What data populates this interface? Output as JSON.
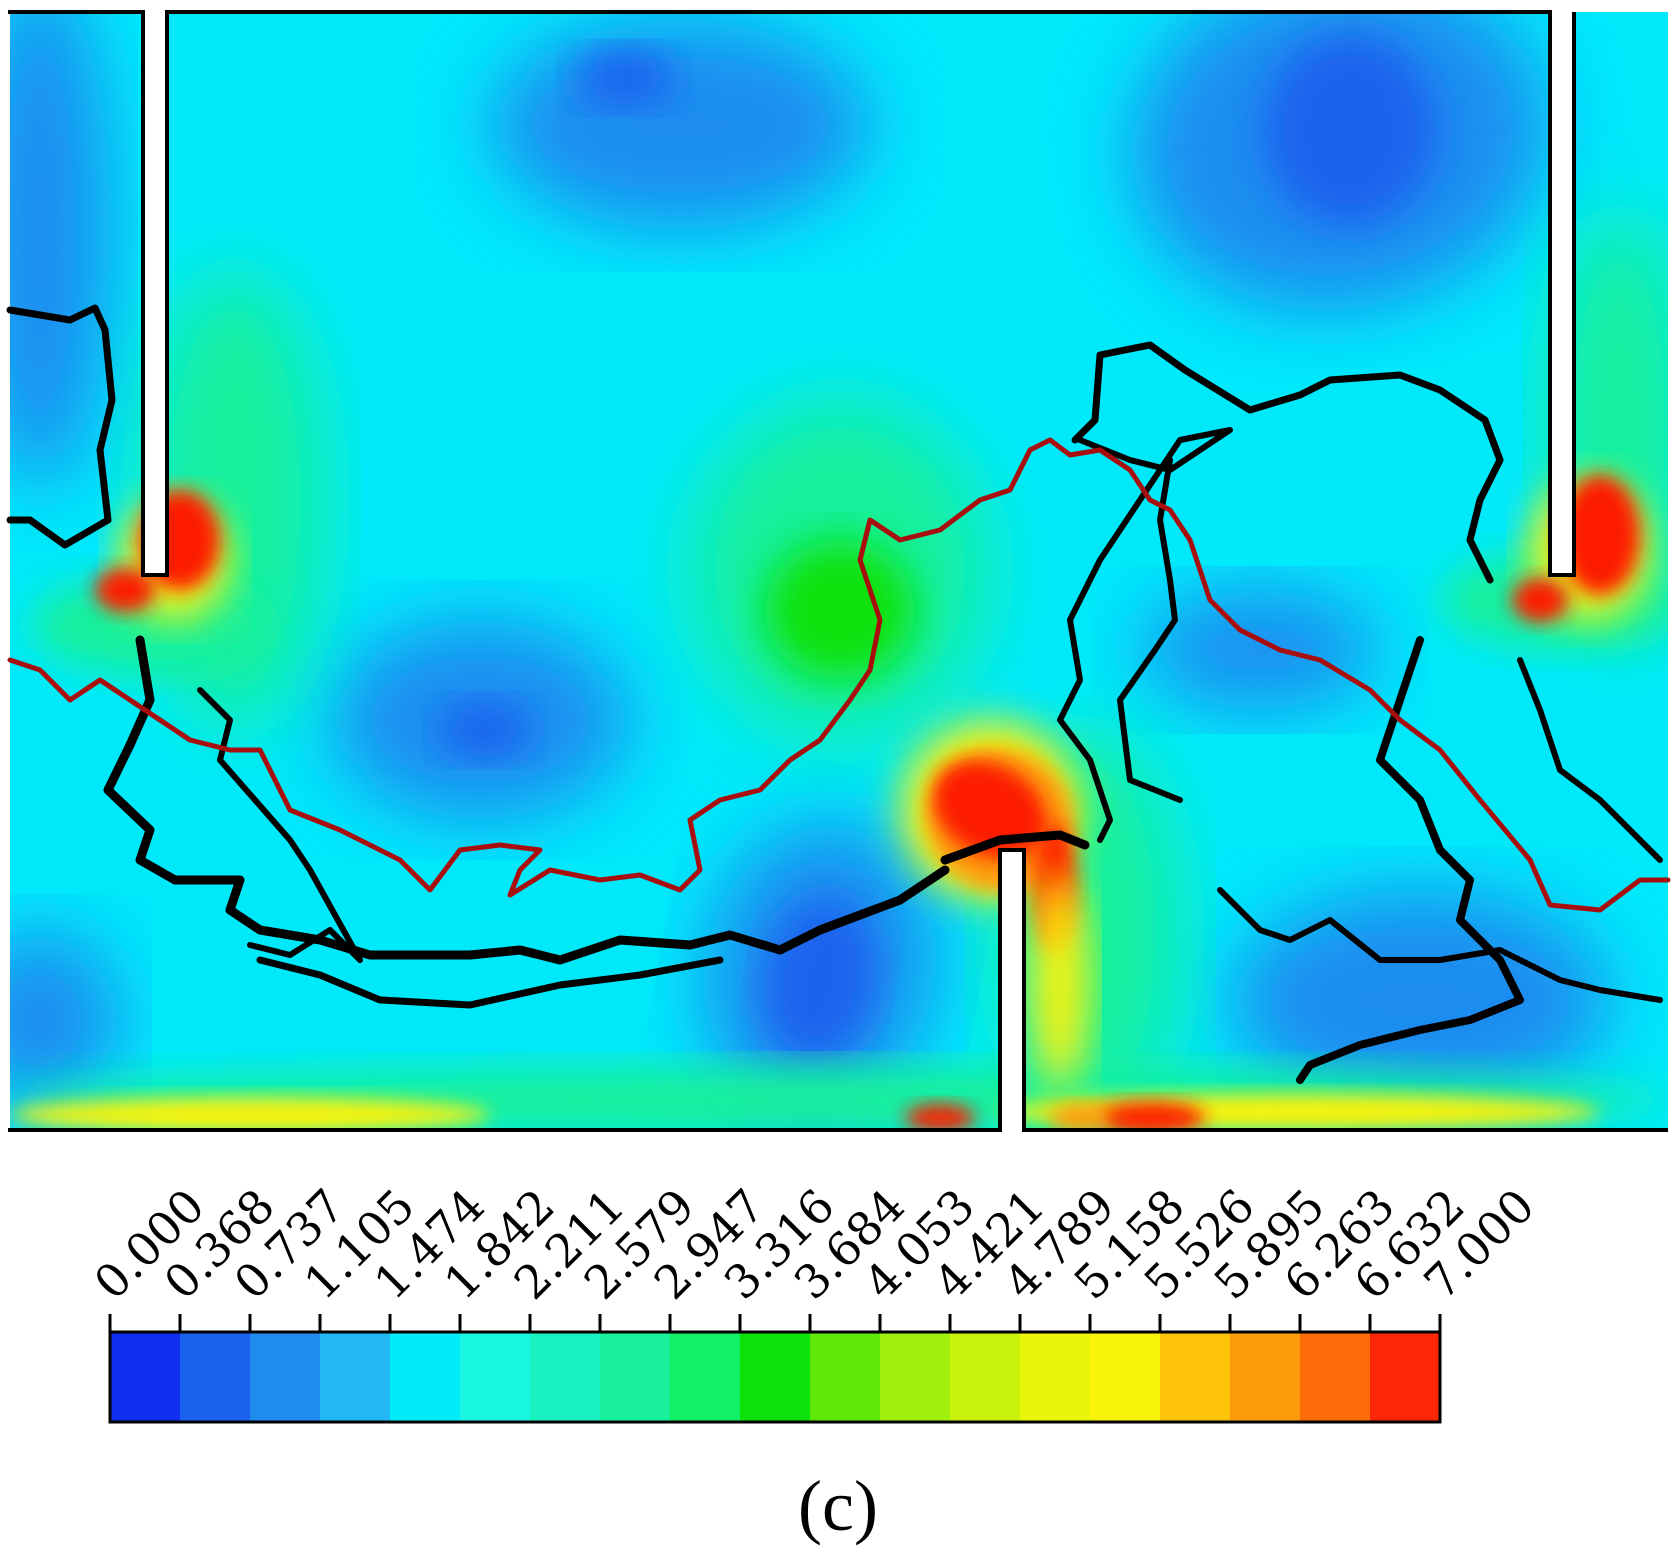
{
  "chart_data": {
    "type": "heatmap",
    "title": "",
    "xlabel": "",
    "ylabel": "",
    "panel_label": "(c)",
    "color_scale": {
      "min": 0.0,
      "max": 7.0,
      "tick_labels": [
        "0.000",
        "0.368",
        "0.737",
        "1.105",
        "1.474",
        "1.842",
        "2.211",
        "2.579",
        "2.947",
        "3.316",
        "3.684",
        "4.053",
        "4.421",
        "4.789",
        "5.158",
        "5.526",
        "5.895",
        "6.263",
        "6.632",
        "7.000"
      ],
      "colors": [
        "#0f2ef0",
        "#1a62ee",
        "#1f8cf0",
        "#22b8f6",
        "#00ecfb",
        "#18f6e2",
        "#19f2c0",
        "#18f09b",
        "#12f067",
        "#0ae20a",
        "#5fe80a",
        "#a0ef0c",
        "#c8f20c",
        "#e8f508",
        "#f8f308",
        "#fdc20a",
        "#fd9c0a",
        "#fd6c08",
        "#fd2606"
      ]
    },
    "field_colors": {
      "background": "#00e9fb",
      "low": "#1f8cf0",
      "very_low": "#1a62ee",
      "mid": "#18f09b",
      "green": "#0ae20a",
      "yellow": "#f8f308",
      "orange": "#fd9c0a",
      "high": "#fd1e06"
    },
    "line_colors": {
      "trajectory_a": "#000000",
      "trajectory_b": "#a80e0e"
    }
  }
}
